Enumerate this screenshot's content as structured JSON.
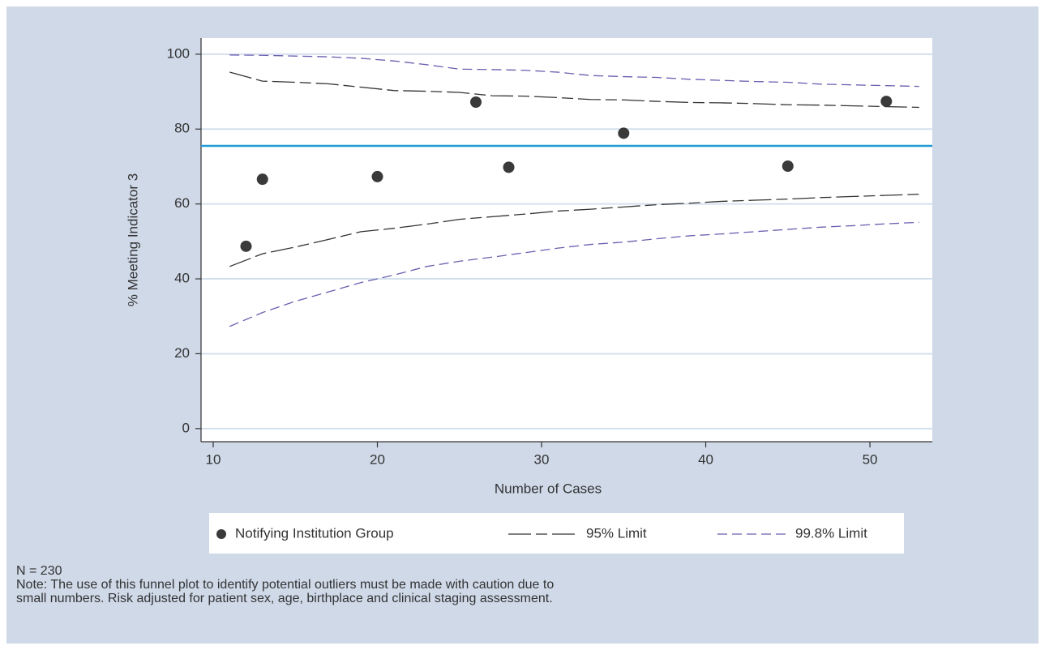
{
  "chart_data": {
    "type": "scatter",
    "x_label": "Number of Cases",
    "y_label": "% Meeting Indicator 3",
    "xlim": [
      9.26,
      53.8
    ],
    "xticks": [
      10,
      20,
      30,
      40,
      50
    ],
    "ylim": [
      -3.5,
      104.3
    ],
    "yticks": [
      0,
      20,
      40,
      60,
      80,
      100
    ],
    "grid": true,
    "reference_line": {
      "value": 75.5,
      "color": "#1f9ad6"
    },
    "series": [
      {
        "name": "Notifying Institution Group",
        "type": "scatter",
        "color": "#3a3a3a",
        "x": [
          12,
          13,
          20,
          26,
          28,
          35,
          45,
          51
        ],
        "values": [
          48.7,
          66.6,
          67.3,
          87.2,
          69.8,
          78.9,
          70.1,
          87.4
        ]
      },
      {
        "name": "95% Limit",
        "type": "line",
        "color": "#333333",
        "x": [
          11,
          13,
          15,
          17,
          19,
          21,
          23,
          25,
          27,
          29,
          31,
          33,
          35,
          37,
          39,
          41,
          43,
          45,
          47,
          49,
          51,
          53
        ],
        "values": [
          95.2,
          92.8,
          92.5,
          92.1,
          91.2,
          90.3,
          90.1,
          89.8,
          88.9,
          88.8,
          88.4,
          87.9,
          87.8,
          87.4,
          87.1,
          87.0,
          86.8,
          86.5,
          86.4,
          86.2,
          86.0,
          85.8
        ],
        "lower": [
          43.3,
          46.7,
          48.5,
          50.5,
          52.6,
          53.5,
          54.6,
          55.9,
          56.6,
          57.3,
          58.1,
          58.6,
          59.2,
          59.8,
          60.2,
          60.7,
          61.0,
          61.3,
          61.7,
          62.0,
          62.3,
          62.6
        ]
      },
      {
        "name": "99.8% Limit",
        "type": "line",
        "color": "#6a5fb0",
        "x": [
          11,
          13,
          15,
          17,
          19,
          21,
          23,
          25,
          27,
          29,
          31,
          33,
          35,
          37,
          39,
          41,
          43,
          45,
          47,
          49,
          51,
          53
        ],
        "values": [
          99.8,
          99.7,
          99.5,
          99.3,
          98.9,
          98.2,
          97.2,
          96.0,
          95.9,
          95.7,
          95.2,
          94.3,
          94.0,
          93.8,
          93.3,
          93.0,
          92.7,
          92.5,
          92.0,
          91.8,
          91.6,
          91.4
        ],
        "lower": [
          27.3,
          31.0,
          34.0,
          36.5,
          39.0,
          41.0,
          43.3,
          44.7,
          45.8,
          47.0,
          48.2,
          49.2,
          49.8,
          50.7,
          51.5,
          52.0,
          52.6,
          53.2,
          53.8,
          54.2,
          54.7,
          55.1
        ]
      }
    ],
    "notes": [
      "N = 230",
      "Note: The use of this funnel plot to identify potential outliers must be made with caution due to",
      "small numbers. Risk adjusted for patient sex, age, birthplace and clinical staging assessment."
    ]
  }
}
